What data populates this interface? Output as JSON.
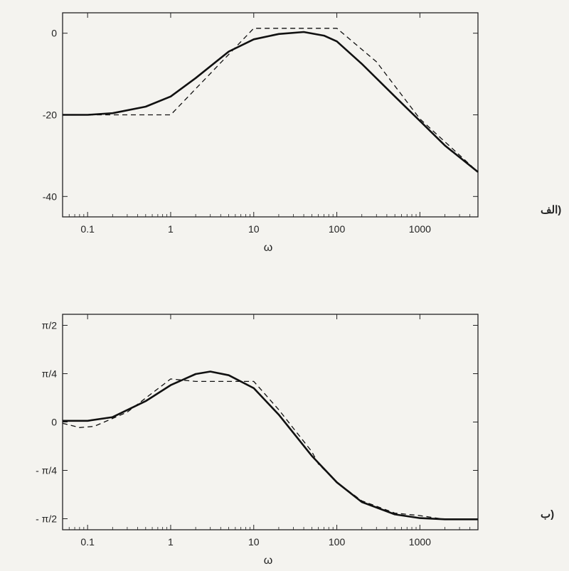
{
  "chart_data": [
    {
      "type": "line",
      "panel_label": "(الف",
      "xlabel": "ω",
      "ylabel": "",
      "xscale": "log",
      "xlim": [
        0.05,
        5000
      ],
      "ylim": [
        -45,
        5
      ],
      "x_ticks": [
        {
          "v": 0.1,
          "t": "0.1"
        },
        {
          "v": 1,
          "t": "1"
        },
        {
          "v": 10,
          "t": "10"
        },
        {
          "v": 100,
          "t": "100"
        },
        {
          "v": 1000,
          "t": "1000"
        }
      ],
      "y_ticks": [
        {
          "v": 0,
          "t": "0"
        },
        {
          "v": -20,
          "t": "-20"
        },
        {
          "v": -40,
          "t": "-40"
        }
      ],
      "series": [
        {
          "style": "solid",
          "points": [
            [
              0.05,
              -20
            ],
            [
              0.1,
              -20
            ],
            [
              0.2,
              -19.6
            ],
            [
              0.5,
              -18
            ],
            [
              1,
              -15.5
            ],
            [
              2,
              -11
            ],
            [
              5,
              -4.5
            ],
            [
              10,
              -1.5
            ],
            [
              20,
              -0.2
            ],
            [
              40,
              0.3
            ],
            [
              70,
              -0.6
            ],
            [
              100,
              -2
            ],
            [
              200,
              -7.5
            ],
            [
              500,
              -15.5
            ],
            [
              1000,
              -21.5
            ],
            [
              2000,
              -27.5
            ],
            [
              5000,
              -34
            ]
          ]
        },
        {
          "style": "dashed",
          "points": [
            [
              0.05,
              -20
            ],
            [
              1,
              -20
            ],
            [
              10,
              1.2
            ],
            [
              100,
              1.2
            ],
            [
              300,
              -7
            ],
            [
              1000,
              -21
            ],
            [
              5000,
              -34
            ]
          ]
        }
      ]
    },
    {
      "type": "line",
      "panel_label": "(ب",
      "xlabel": "ω",
      "ylabel": "",
      "xscale": "log",
      "xlim": [
        0.05,
        5000
      ],
      "ylim": [
        -1.75,
        1.75
      ],
      "x_ticks": [
        {
          "v": 0.1,
          "t": "0.1"
        },
        {
          "v": 1,
          "t": "1"
        },
        {
          "v": 10,
          "t": "10"
        },
        {
          "v": 100,
          "t": "100"
        },
        {
          "v": 1000,
          "t": "1000"
        }
      ],
      "y_ticks": [
        {
          "v": 1.5708,
          "t": "π/2"
        },
        {
          "v": 0.7854,
          "t": "π/4"
        },
        {
          "v": 0,
          "t": "0"
        },
        {
          "v": -0.7854,
          "t": "- π/4"
        },
        {
          "v": -1.5708,
          "t": "- π/2"
        }
      ],
      "series": [
        {
          "style": "solid",
          "points": [
            [
              0.05,
              0.02
            ],
            [
              0.1,
              0.02
            ],
            [
              0.2,
              0.08
            ],
            [
              0.5,
              0.34
            ],
            [
              1,
              0.6
            ],
            [
              2,
              0.78
            ],
            [
              3,
              0.82
            ],
            [
              5,
              0.76
            ],
            [
              10,
              0.55
            ],
            [
              20,
              0.12
            ],
            [
              50,
              -0.55
            ],
            [
              100,
              -0.98
            ],
            [
              200,
              -1.3
            ],
            [
              500,
              -1.5
            ],
            [
              1000,
              -1.56
            ],
            [
              2000,
              -1.58
            ],
            [
              5000,
              -1.58
            ]
          ]
        },
        {
          "style": "dashed",
          "points": [
            [
              0.05,
              -0.02
            ],
            [
              0.08,
              -0.09
            ],
            [
              0.12,
              -0.07
            ],
            [
              0.3,
              0.16
            ],
            [
              0.6,
              0.47
            ],
            [
              1,
              0.7
            ],
            [
              2,
              0.66
            ],
            [
              5,
              0.66
            ],
            [
              10,
              0.66
            ],
            [
              20,
              0.2
            ],
            [
              50,
              -0.48
            ],
            [
              60,
              -0.68
            ],
            [
              100,
              -0.98
            ],
            [
              200,
              -1.28
            ],
            [
              500,
              -1.48
            ],
            [
              1000,
              -1.52
            ],
            [
              2000,
              -1.58
            ],
            [
              5000,
              -1.58
            ]
          ]
        }
      ]
    }
  ]
}
